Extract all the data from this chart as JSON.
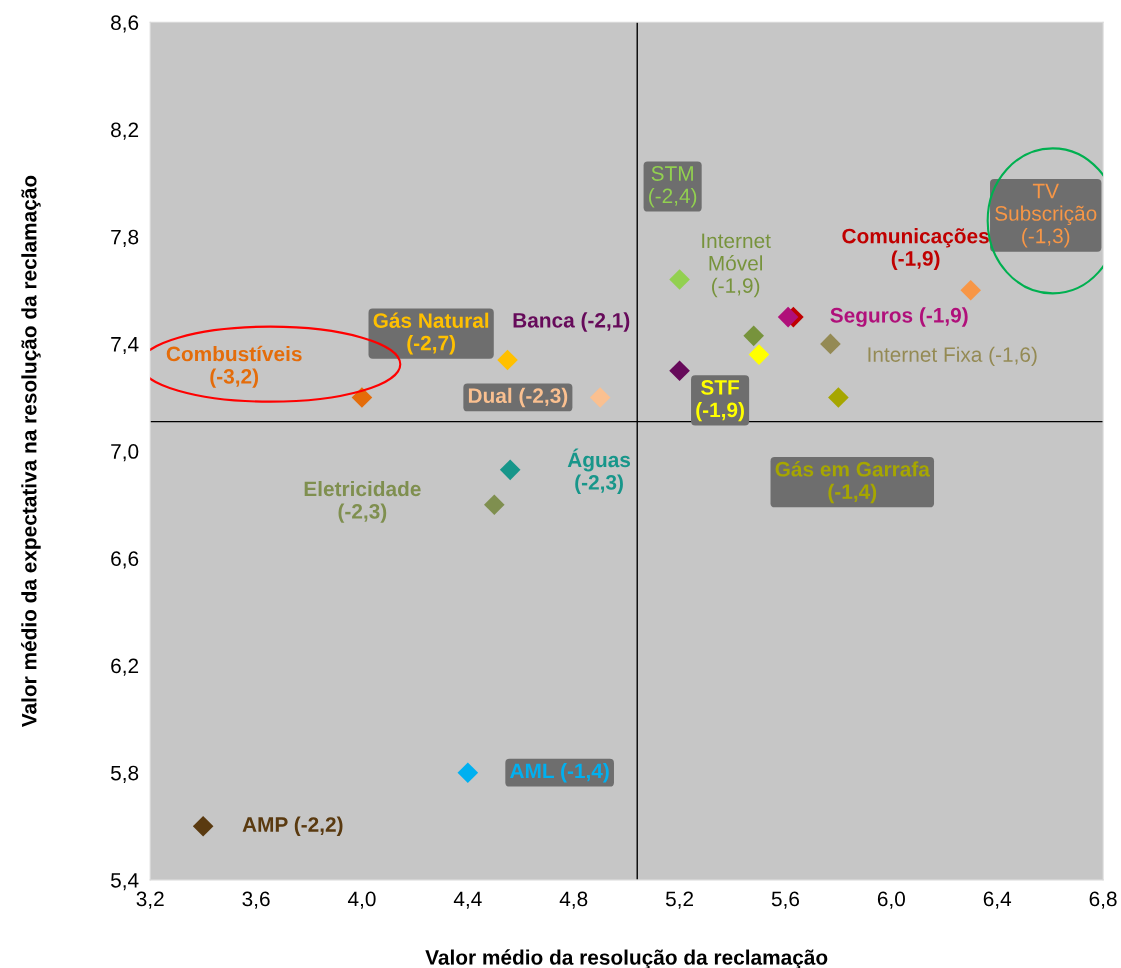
{
  "chart_data": {
    "type": "scatter",
    "xlabel": "Valor médio da resolução da reclamação",
    "ylabel": "Valor médio da expectativa na resolução da reclamação",
    "marker": "diamond",
    "grid": false,
    "xlim": [
      3.2,
      6.8
    ],
    "xticks": [
      {
        "value": 3.2,
        "label": "3,2"
      },
      {
        "value": 3.6,
        "label": "3,6"
      },
      {
        "value": 4.0,
        "label": "4,0"
      },
      {
        "value": 4.4,
        "label": "4,4"
      },
      {
        "value": 4.8,
        "label": "4,8"
      },
      {
        "value": 5.2,
        "label": "5,2"
      },
      {
        "value": 5.6,
        "label": "5,6"
      },
      {
        "value": 6.0,
        "label": "6,0"
      },
      {
        "value": 6.4,
        "label": "6,4"
      },
      {
        "value": 6.8,
        "label": "6,8"
      }
    ],
    "ylim": [
      5.4,
      8.6
    ],
    "yticks": [
      {
        "value": 5.4,
        "label": "5,4"
      },
      {
        "value": 5.8,
        "label": "5,8"
      },
      {
        "value": 6.2,
        "label": "6,2"
      },
      {
        "value": 6.6,
        "label": "6,6"
      },
      {
        "value": 7.0,
        "label": "7,0"
      },
      {
        "value": 7.4,
        "label": "7,4"
      },
      {
        "value": 7.8,
        "label": "7,8"
      },
      {
        "value": 8.2,
        "label": "8,2"
      },
      {
        "value": 8.6,
        "label": "8,6"
      }
    ],
    "ref_lines": [
      {
        "axis": "x",
        "value": 5.04,
        "color": "#000000"
      },
      {
        "axis": "y",
        "value": 7.11,
        "color": "#000000"
      }
    ],
    "series": [
      {
        "name": "Combustíveis\n(-3,2)",
        "color": "#e46c0a",
        "x": [
          4.0
        ],
        "values": [
          7.2
        ]
      },
      {
        "name": "Gás Natural\n(-2,7)",
        "color": "#ffc000",
        "x": [
          4.55
        ],
        "values": [
          7.34
        ]
      },
      {
        "name": "Dual (-2,3)",
        "color": "#fac090",
        "x": [
          4.9
        ],
        "values": [
          7.2
        ]
      },
      {
        "name": "Banca (-2,1)",
        "color": "#660a5a",
        "x": [
          5.2
        ],
        "values": [
          7.3
        ]
      },
      {
        "name": "STM\n(-2,4)",
        "color": "#92d050",
        "x": [
          5.2
        ],
        "values": [
          7.64
        ]
      },
      {
        "name": "Internet\nMóvel\n(-1,9)",
        "color": "#77933c",
        "x": [
          5.48
        ],
        "values": [
          7.43
        ]
      },
      {
        "name": "Comunicações\n(-1,9)",
        "color": "#c00000",
        "x": [
          5.63
        ],
        "values": [
          7.5
        ]
      },
      {
        "name": "Seguros (-1,9)",
        "color": "#b0107a",
        "x": [
          5.61
        ],
        "values": [
          7.5
        ]
      },
      {
        "name": "STF\n(-1,9)",
        "color": "#ffff00",
        "x": [
          5.5
        ],
        "values": [
          7.36
        ]
      },
      {
        "name": "Internet Fixa (-1,6)",
        "color": "#948a54",
        "x": [
          5.77
        ],
        "values": [
          7.4
        ]
      },
      {
        "name": "Gás em Garrafa\n(-1,4)",
        "color": "#a6a600",
        "x": [
          5.8
        ],
        "values": [
          7.2
        ]
      },
      {
        "name": "TV\nSubscrição\n(-1,3)",
        "color": "#f79646",
        "x": [
          6.3
        ],
        "values": [
          7.6
        ]
      },
      {
        "name": "Águas\n(-2,3)",
        "color": "#17968a",
        "x": [
          4.56
        ],
        "values": [
          6.93
        ]
      },
      {
        "name": "Eletricidade\n(-2,3)",
        "color": "#7f8f4f",
        "x": [
          4.5
        ],
        "values": [
          6.8
        ]
      },
      {
        "name": "AML (-1,4)",
        "color": "#00b0f0",
        "x": [
          4.4
        ],
        "values": [
          5.8
        ]
      },
      {
        "name": "AMP (-2,2)",
        "color": "#5a3a10",
        "x": [
          3.4
        ],
        "values": [
          5.6
        ]
      }
    ]
  }
}
